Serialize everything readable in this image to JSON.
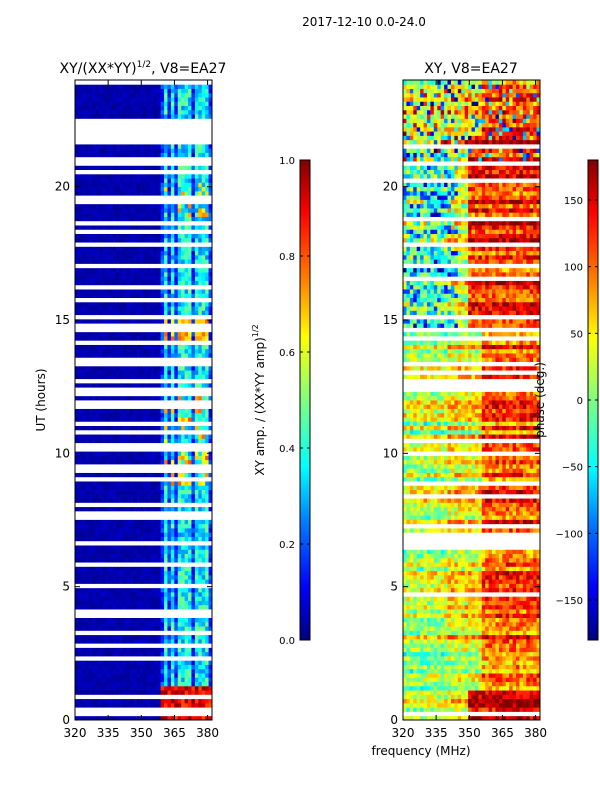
{
  "suptitle": "2017-12-10 0.0-24.0",
  "shared_xlabel": "frequency (MHz)",
  "chart_data": [
    {
      "type": "heatmap",
      "title_main": "XY/(XX*YY)",
      "title_sup": "1/2",
      "title_suffix": ", V8=EA27",
      "ylabel": "UT (hours)",
      "xlim": [
        320,
        382
      ],
      "ylim": [
        0,
        24
      ],
      "xticks": [
        320,
        335,
        350,
        365,
        380
      ],
      "yticks": [
        0,
        5,
        10,
        15,
        20
      ],
      "band_start_mhz": 359,
      "comb_channels_mhz": [
        361,
        364,
        367,
        369.5,
        372,
        375,
        377.5,
        380
      ],
      "colorbar": {
        "label_main": "XY amp. / (XX*YY amp)",
        "label_sup": "1/2",
        "range": [
          0,
          1
        ],
        "ticks": [
          "0.0",
          "0.2",
          "0.4",
          "0.6",
          "0.8",
          "1.0"
        ]
      }
    },
    {
      "type": "heatmap",
      "title": "XY, V8=EA27",
      "xlim": [
        320,
        382
      ],
      "ylim": [
        0,
        24
      ],
      "xticks": [
        320,
        335,
        350,
        365,
        380
      ],
      "yticks": [
        0,
        5,
        10,
        15,
        20
      ],
      "phase_jump_mhz": 355,
      "colorbar": {
        "label": "phase (deg.)",
        "range": [
          -180,
          180
        ],
        "ticks": [
          "−150",
          "−100",
          "−50",
          "0",
          "50",
          "100",
          "150"
        ]
      }
    }
  ],
  "colors": {
    "jet": [
      "#000080",
      "#0000ff",
      "#0080ff",
      "#00ffff",
      "#80ff80",
      "#ffff00",
      "#ff8000",
      "#ff0000",
      "#800000"
    ]
  }
}
